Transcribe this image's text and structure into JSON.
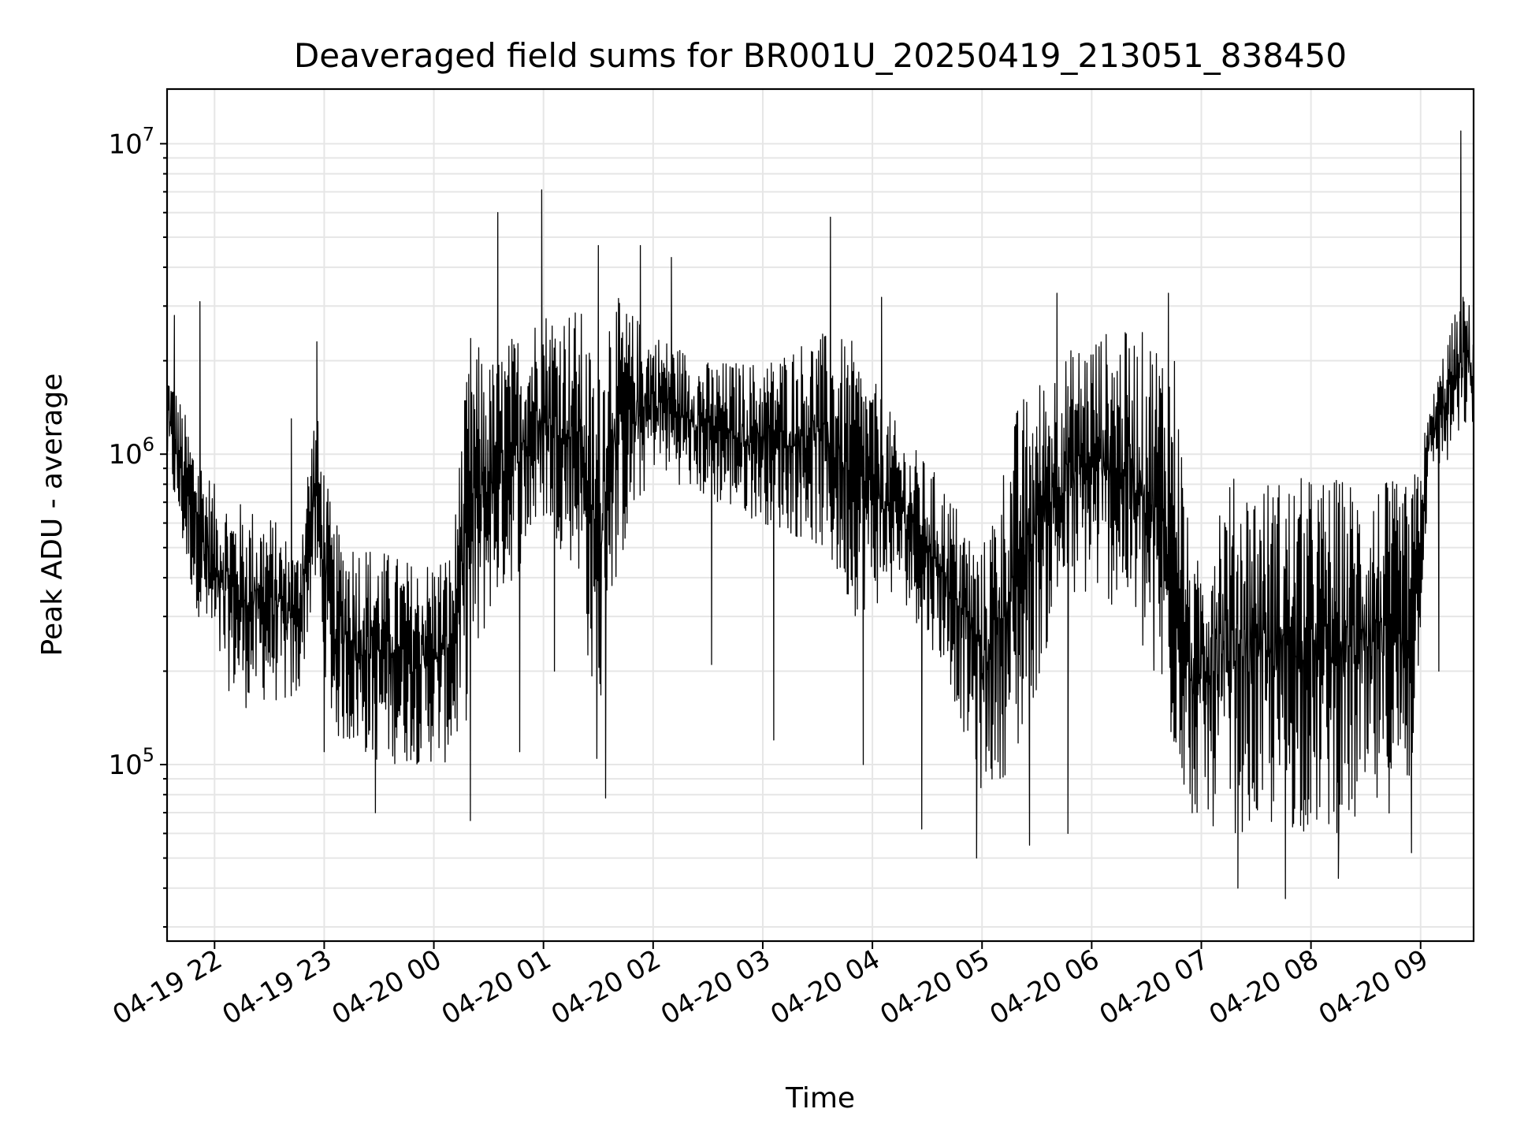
{
  "chart_data": {
    "type": "line",
    "title": "Deaveraged field sums for BR001U_20250419_213051_838450",
    "xlabel": "Time",
    "ylabel": "Peak ADU - average",
    "yscale": "log",
    "grid": "major and minor",
    "xlim": [
      "2025-04-19 21:34",
      "2025-04-20 09:29"
    ],
    "ylim": [
      27000,
      15000000
    ],
    "x_ticks": [
      "04-19 22",
      "04-19 23",
      "04-20 00",
      "04-20 01",
      "04-20 02",
      "04-20 03",
      "04-20 04",
      "04-20 05",
      "04-20 06",
      "04-20 07",
      "04-20 08",
      "04-20 09"
    ],
    "y_ticks": [
      {
        "base": "10",
        "exp": "5",
        "value": 100000
      },
      {
        "base": "10",
        "exp": "6",
        "value": 1000000
      },
      {
        "base": "10",
        "exp": "7",
        "value": 10000000
      }
    ],
    "series": [
      {
        "color": "#000000",
        "x": [
          "2025-04-19 21:34",
          "2025-04-19 21:45",
          "2025-04-19 22:00",
          "2025-04-19 22:15",
          "2025-04-19 22:30",
          "2025-04-19 22:45",
          "2025-04-19 22:55",
          "2025-04-19 23:05",
          "2025-04-19 23:30",
          "2025-04-19 23:50",
          "2025-04-20 00:10",
          "2025-04-20 00:20",
          "2025-04-20 00:30",
          "2025-04-20 00:45",
          "2025-04-20 01:00",
          "2025-04-20 01:20",
          "2025-04-20 01:30",
          "2025-04-20 01:35",
          "2025-04-20 01:45",
          "2025-04-20 02:00",
          "2025-04-20 02:30",
          "2025-04-20 03:00",
          "2025-04-20 03:30",
          "2025-04-20 03:50",
          "2025-04-20 04:15",
          "2025-04-20 04:40",
          "2025-04-20 05:00",
          "2025-04-20 05:20",
          "2025-04-20 05:40",
          "2025-04-20 06:00",
          "2025-04-20 06:20",
          "2025-04-20 06:45",
          "2025-04-20 06:55",
          "2025-04-20 07:10",
          "2025-04-20 07:30",
          "2025-04-20 08:00",
          "2025-04-20 08:30",
          "2025-04-20 08:55",
          "2025-04-20 09:05",
          "2025-04-20 09:15",
          "2025-04-20 09:25",
          "2025-04-20 09:29"
        ],
        "low": [
          900000,
          400000,
          200000,
          150000,
          160000,
          150000,
          350000,
          120000,
          100000,
          100000,
          100000,
          150000,
          300000,
          400000,
          600000,
          400000,
          90000,
          300000,
          500000,
          900000,
          700000,
          600000,
          500000,
          300000,
          350000,
          200000,
          80000,
          100000,
          300000,
          350000,
          300000,
          100000,
          70000,
          60000,
          60000,
          60000,
          60000,
          80000,
          900000,
          900000,
          1200000,
          1200000
        ],
        "high": [
          2000000,
          1300000,
          800000,
          700000,
          650000,
          500000,
          1500000,
          600000,
          500000,
          450000,
          500000,
          2500000,
          2000000,
          2500000,
          3000000,
          3000000,
          1800000,
          3500000,
          3000000,
          2500000,
          2000000,
          2000000,
          2500000,
          2300000,
          1200000,
          800000,
          500000,
          1500000,
          2000000,
          2500000,
          2500000,
          2500000,
          400000,
          850000,
          850000,
          850000,
          850000,
          800000,
          1400000,
          2500000,
          3500000,
          2500000
        ],
        "spikes": [
          {
            "x": "2025-04-19 21:38",
            "y": 2800000
          },
          {
            "x": "2025-04-19 21:52",
            "y": 3100000
          },
          {
            "x": "2025-04-19 22:42",
            "y": 1300000
          },
          {
            "x": "2025-04-19 22:56",
            "y": 2300000
          },
          {
            "x": "2025-04-19 23:00",
            "y": 110000
          },
          {
            "x": "2025-04-19 23:28",
            "y": 70000
          },
          {
            "x": "2025-04-20 00:14",
            "y": 900000
          },
          {
            "x": "2025-04-20 00:20",
            "y": 66000
          },
          {
            "x": "2025-04-20 00:35",
            "y": 6000000
          },
          {
            "x": "2025-04-20 00:47",
            "y": 110000
          },
          {
            "x": "2025-04-20 00:59",
            "y": 7100000
          },
          {
            "x": "2025-04-20 01:06",
            "y": 200000
          },
          {
            "x": "2025-04-20 01:30",
            "y": 4700000
          },
          {
            "x": "2025-04-20 01:34",
            "y": 78000
          },
          {
            "x": "2025-04-20 01:53",
            "y": 4700000
          },
          {
            "x": "2025-04-20 02:10",
            "y": 4300000
          },
          {
            "x": "2025-04-20 02:32",
            "y": 210000
          },
          {
            "x": "2025-04-20 03:06",
            "y": 120000
          },
          {
            "x": "2025-04-20 03:37",
            "y": 5800000
          },
          {
            "x": "2025-04-20 03:55",
            "y": 100000
          },
          {
            "x": "2025-04-20 04:05",
            "y": 3200000
          },
          {
            "x": "2025-04-20 04:27",
            "y": 62000
          },
          {
            "x": "2025-04-20 04:57",
            "y": 50000
          },
          {
            "x": "2025-04-20 05:26",
            "y": 55000
          },
          {
            "x": "2025-04-20 05:41",
            "y": 3300000
          },
          {
            "x": "2025-04-20 05:47",
            "y": 60000
          },
          {
            "x": "2025-04-20 06:42",
            "y": 3300000
          },
          {
            "x": "2025-04-20 06:55",
            "y": 70000
          },
          {
            "x": "2025-04-20 07:20",
            "y": 40000
          },
          {
            "x": "2025-04-20 07:46",
            "y": 37000
          },
          {
            "x": "2025-04-20 08:15",
            "y": 43000
          },
          {
            "x": "2025-04-20 08:55",
            "y": 52000
          },
          {
            "x": "2025-04-20 09:10",
            "y": 200000
          },
          {
            "x": "2025-04-20 09:22",
            "y": 11000000
          }
        ]
      }
    ]
  }
}
